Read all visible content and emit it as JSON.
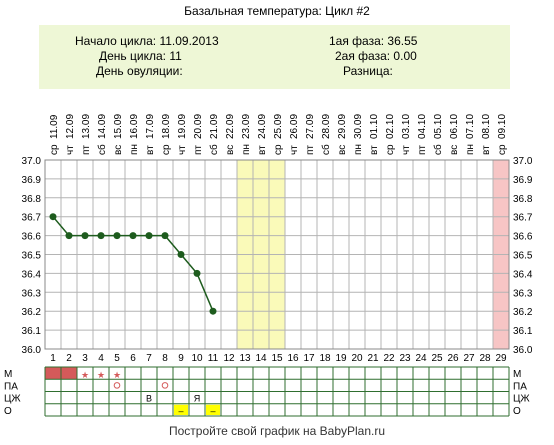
{
  "title": "Базальная температура: Цикл #2",
  "info": {
    "cycle_start": "Начало цикла: 11.09.2013",
    "cycle_day": "День цикла: 11",
    "ovulation_day": "День овуляции:",
    "phase1": "1ая фаза: 36.55",
    "phase2": "2ая фаза: 0.00",
    "difference": "Разница:"
  },
  "footer": "Постройте свой график на BabyPlan.ru",
  "row_labels": [
    "М",
    "ПА",
    "ЦЖ",
    "О"
  ],
  "colors": {
    "line": "#1e5c1e",
    "grid": "#b4b4b4",
    "highlight": "#fafab9",
    "highlight_pink": "#f7c5c5",
    "menstruation": "#d45a5a",
    "mark": "#d45a5a",
    "ovulation_test": "#ffff00"
  },
  "chart_data": {
    "type": "line",
    "x": [
      1,
      2,
      3,
      4,
      5,
      6,
      7,
      8,
      9,
      10,
      11
    ],
    "y": [
      36.7,
      36.6,
      36.6,
      36.6,
      36.6,
      36.6,
      36.6,
      36.6,
      36.5,
      36.4,
      36.2
    ],
    "ylim": [
      36.0,
      37.0
    ],
    "yticks": [
      "37.0",
      "36.9",
      "36.8",
      "36.7",
      "36.6",
      "36.5",
      "36.4",
      "36.3",
      "36.2",
      "36.1",
      "36.0"
    ],
    "days": [
      "1",
      "2",
      "3",
      "4",
      "5",
      "6",
      "7",
      "8",
      "9",
      "10",
      "11",
      "12",
      "13",
      "14",
      "15",
      "16",
      "17",
      "18",
      "19",
      "20",
      "21",
      "22",
      "23",
      "24",
      "25",
      "26",
      "27",
      "28",
      "29"
    ],
    "dates": [
      "11.09",
      "12.09",
      "13.09",
      "14.09",
      "15.09",
      "16.09",
      "17.09",
      "18.09",
      "19.09",
      "20.09",
      "21.09",
      "22.09",
      "23.09",
      "24.09",
      "25.09",
      "26.09",
      "27.09",
      "28.09",
      "29.09",
      "30.09",
      "01.10",
      "02.10",
      "03.10",
      "04.10",
      "05.10",
      "06.10",
      "07.10",
      "08.10",
      "09.10"
    ],
    "weekdays": [
      "ср",
      "чт",
      "пт",
      "сб",
      "вс",
      "пн",
      "вт",
      "ср",
      "чт",
      "пт",
      "сб",
      "вс",
      "пн",
      "вт",
      "ср",
      "чт",
      "пт",
      "сб",
      "вс",
      "пн",
      "вт",
      "ср",
      "чт",
      "пт",
      "сб",
      "вс",
      "пн",
      "вт",
      "ср"
    ],
    "highlight_days": [
      13,
      14,
      15
    ],
    "pink_days": [
      29
    ],
    "grid": true
  },
  "markers": {
    "menstruation_days": [
      1,
      2
    ],
    "star_days": [
      3,
      4,
      5
    ],
    "pa_circle_days": [
      5,
      8
    ],
    "cervical": [
      {
        "day": 7,
        "text": "В"
      },
      {
        "day": 10,
        "text": "Я"
      }
    ],
    "ovulation_test_days": [
      9,
      11
    ],
    "ovulation_test_label": "–"
  }
}
